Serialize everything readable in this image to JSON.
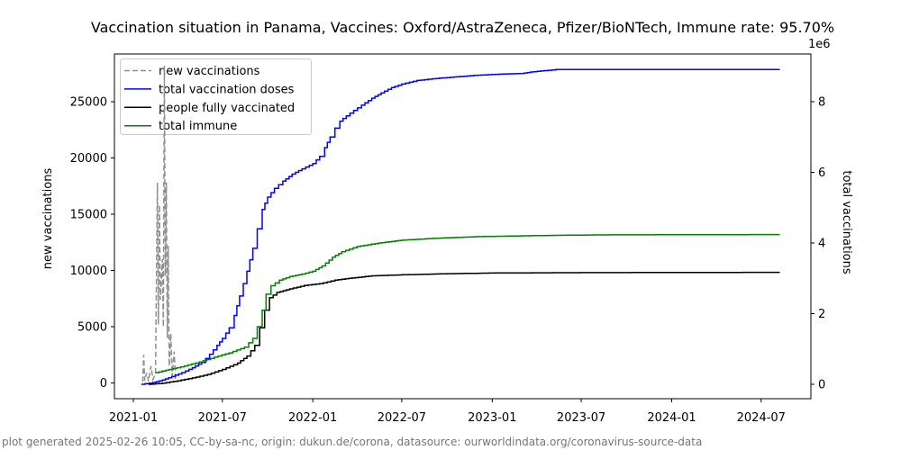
{
  "footer": {
    "text": "plot generated 2025-02-26 10:05, CC-by-sa-nc, origin: dukun.de/corona, datasource: ourworldindata.org/coronavirus-source-data"
  },
  "chart_data": {
    "type": "line",
    "title": "Vaccination situation in Panama, Vaccines: Oxford/AstraZeneca, Pfizer/BioNTech, Immune rate: 95.70%",
    "legend_position": "upper left",
    "grid": false,
    "x_axis": {
      "tick_labels": [
        "2021-01",
        "2021-07",
        "2022-01",
        "2022-07",
        "2023-01",
        "2023-07",
        "2024-01",
        "2024-07"
      ],
      "range_dates": [
        "2020-11-24",
        "2024-10-10"
      ]
    },
    "left_axis": {
      "label": "new vaccinations",
      "tick_values": [
        0,
        5000,
        10000,
        15000,
        20000,
        25000
      ],
      "range": [
        -1400,
        29240
      ]
    },
    "right_axis": {
      "label": "total vaccinations",
      "multiplier": "1e6",
      "tick_values": [
        0,
        2,
        4,
        6,
        8
      ],
      "range_millions": [
        -0.41,
        9.35
      ]
    },
    "series": [
      {
        "name": "new vaccinations",
        "axis": "left",
        "color": "#8f8f8f",
        "style": "dashed",
        "points": [
          [
            "2021-01-20",
            100
          ],
          [
            "2021-01-22",
            2500
          ],
          [
            "2021-01-24",
            200
          ],
          [
            "2021-01-28",
            900
          ],
          [
            "2021-02-01",
            150
          ],
          [
            "2021-02-06",
            1500
          ],
          [
            "2021-02-10",
            300
          ],
          [
            "2021-02-15",
            800
          ],
          [
            "2021-02-19",
            17800
          ],
          [
            "2021-02-21",
            5200
          ],
          [
            "2021-02-23",
            15800
          ],
          [
            "2021-02-25",
            7400
          ],
          [
            "2021-03-01",
            11000
          ],
          [
            "2021-03-03",
            5000
          ],
          [
            "2021-03-05",
            28200
          ],
          [
            "2021-03-07",
            9500
          ],
          [
            "2021-03-09",
            17800
          ],
          [
            "2021-03-11",
            4000
          ],
          [
            "2021-03-13",
            12200
          ],
          [
            "2021-03-15",
            1500
          ],
          [
            "2021-03-18",
            4400
          ],
          [
            "2021-03-21",
            600
          ],
          [
            "2021-03-25",
            2800
          ],
          [
            "2021-03-28",
            300
          ]
        ]
      },
      {
        "name": "total vaccination doses",
        "axis": "right",
        "color": "#0000ff",
        "style": "step",
        "points_millions": [
          [
            "2021-01-17",
            0.0
          ],
          [
            "2021-02-10",
            0.05
          ],
          [
            "2021-03-01",
            0.12
          ],
          [
            "2021-03-20",
            0.22
          ],
          [
            "2021-04-10",
            0.33
          ],
          [
            "2021-05-01",
            0.47
          ],
          [
            "2021-05-20",
            0.62
          ],
          [
            "2021-06-05",
            0.85
          ],
          [
            "2021-06-20",
            1.1
          ],
          [
            "2021-07-01",
            1.3
          ],
          [
            "2021-07-15",
            1.6
          ],
          [
            "2021-07-25",
            1.95
          ],
          [
            "2021-08-05",
            2.5
          ],
          [
            "2021-08-20",
            3.2
          ],
          [
            "2021-09-01",
            3.85
          ],
          [
            "2021-09-10",
            4.4
          ],
          [
            "2021-09-20",
            4.95
          ],
          [
            "2021-10-01",
            5.3
          ],
          [
            "2021-10-15",
            5.55
          ],
          [
            "2021-11-01",
            5.75
          ],
          [
            "2021-11-20",
            5.95
          ],
          [
            "2021-12-10",
            6.1
          ],
          [
            "2022-01-01",
            6.25
          ],
          [
            "2022-01-15",
            6.45
          ],
          [
            "2022-01-25",
            6.7
          ],
          [
            "2022-02-05",
            7.0
          ],
          [
            "2022-02-15",
            7.25
          ],
          [
            "2022-02-25",
            7.45
          ],
          [
            "2022-03-10",
            7.6
          ],
          [
            "2022-03-25",
            7.75
          ],
          [
            "2022-04-10",
            7.9
          ],
          [
            "2022-05-01",
            8.1
          ],
          [
            "2022-05-20",
            8.25
          ],
          [
            "2022-06-10",
            8.4
          ],
          [
            "2022-07-01",
            8.5
          ],
          [
            "2022-08-01",
            8.6
          ],
          [
            "2022-09-01",
            8.65
          ],
          [
            "2022-10-15",
            8.7
          ],
          [
            "2022-12-01",
            8.75
          ],
          [
            "2023-01-15",
            8.78
          ],
          [
            "2023-03-01",
            8.8
          ],
          [
            "2023-03-20",
            8.84
          ],
          [
            "2023-04-16",
            8.88
          ],
          [
            "2023-05-10",
            8.91
          ],
          [
            "2024-08-08",
            8.91
          ]
        ]
      },
      {
        "name": "people fully vaccinated",
        "axis": "right",
        "color": "#000000",
        "style": "step",
        "points_millions": [
          [
            "2021-02-01",
            0.0
          ],
          [
            "2021-03-01",
            0.03
          ],
          [
            "2021-04-01",
            0.1
          ],
          [
            "2021-05-01",
            0.18
          ],
          [
            "2021-06-01",
            0.28
          ],
          [
            "2021-07-01",
            0.42
          ],
          [
            "2021-08-01",
            0.6
          ],
          [
            "2021-08-20",
            0.8
          ],
          [
            "2021-09-05",
            1.1
          ],
          [
            "2021-09-15",
            1.6
          ],
          [
            "2021-09-25",
            2.1
          ],
          [
            "2021-10-05",
            2.45
          ],
          [
            "2021-10-20",
            2.6
          ],
          [
            "2021-11-15",
            2.7
          ],
          [
            "2021-12-15",
            2.8
          ],
          [
            "2022-01-15",
            2.85
          ],
          [
            "2022-02-15",
            2.95
          ],
          [
            "2022-03-15",
            3.0
          ],
          [
            "2022-05-01",
            3.07
          ],
          [
            "2022-07-01",
            3.1
          ],
          [
            "2022-10-01",
            3.13
          ],
          [
            "2023-01-01",
            3.15
          ],
          [
            "2023-06-01",
            3.16
          ],
          [
            "2024-08-08",
            3.17
          ]
        ]
      },
      {
        "name": "total immune",
        "axis": "right",
        "color": "#008000",
        "style": "step",
        "points_millions": [
          [
            "2021-02-15",
            0.33
          ],
          [
            "2021-03-15",
            0.42
          ],
          [
            "2021-04-15",
            0.52
          ],
          [
            "2021-05-15",
            0.63
          ],
          [
            "2021-06-15",
            0.77
          ],
          [
            "2021-07-15",
            0.89
          ],
          [
            "2021-08-15",
            1.05
          ],
          [
            "2021-09-01",
            1.3
          ],
          [
            "2021-09-10",
            1.63
          ],
          [
            "2021-09-20",
            2.1
          ],
          [
            "2021-09-28",
            2.55
          ],
          [
            "2021-10-08",
            2.79
          ],
          [
            "2021-10-25",
            2.95
          ],
          [
            "2021-11-15",
            3.05
          ],
          [
            "2021-12-10",
            3.12
          ],
          [
            "2022-01-01",
            3.2
          ],
          [
            "2022-01-20",
            3.35
          ],
          [
            "2022-02-10",
            3.6
          ],
          [
            "2022-03-01",
            3.75
          ],
          [
            "2022-04-01",
            3.9
          ],
          [
            "2022-05-15",
            4.0
          ],
          [
            "2022-07-01",
            4.08
          ],
          [
            "2022-09-01",
            4.13
          ],
          [
            "2022-12-01",
            4.18
          ],
          [
            "2023-04-01",
            4.21
          ],
          [
            "2023-08-01",
            4.23
          ],
          [
            "2024-08-08",
            4.24
          ]
        ]
      }
    ]
  }
}
